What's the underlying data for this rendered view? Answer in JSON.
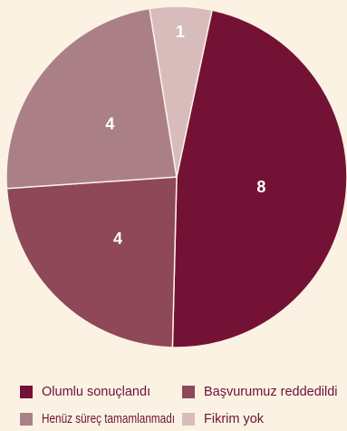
{
  "chart_data": {
    "type": "pie",
    "title": "",
    "legend_placement": "bottom",
    "slices": [
      {
        "label": "Olumlu sonuçlandı",
        "value": 8,
        "color": "#741235"
      },
      {
        "label": "Başvurumuz reddedildi",
        "value": 4,
        "color": "#8e4858"
      },
      {
        "label": "Henüz süreç tamamlanmadı",
        "value": 4,
        "color": "#ab7f86"
      },
      {
        "label": "Fikrim yok",
        "value": 1,
        "color": "#d8bcbc"
      }
    ]
  }
}
